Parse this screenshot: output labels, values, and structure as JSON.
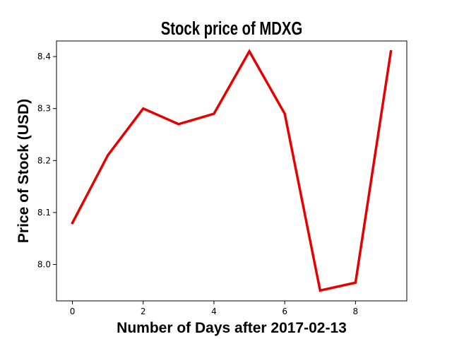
{
  "chart_data": {
    "type": "line",
    "title": "Stock price of MDXG",
    "xlabel": "Number of Days after 2017-02-13",
    "ylabel": "Price of Stock (USD)",
    "x": [
      0,
      1,
      2,
      3,
      4,
      5,
      6,
      7,
      8,
      9
    ],
    "series": [
      {
        "values": [
          8.08,
          8.21,
          8.3,
          8.27,
          8.29,
          8.41,
          8.29,
          7.95,
          7.965,
          8.41
        ],
        "color": "#e60000"
      }
    ],
    "xlim": [
      -0.45,
      9.45
    ],
    "ylim": [
      7.93,
      8.43
    ],
    "xticks": [
      0,
      2,
      4,
      6,
      8
    ],
    "xtick_labels": [
      "0",
      "2",
      "4",
      "6",
      "8"
    ],
    "yticks": [
      8.0,
      8.1,
      8.2,
      8.3,
      8.4
    ],
    "ytick_labels": [
      "8.0",
      "8.1",
      "8.2",
      "8.3",
      "8.4"
    ],
    "grid": false,
    "legend": "none"
  }
}
